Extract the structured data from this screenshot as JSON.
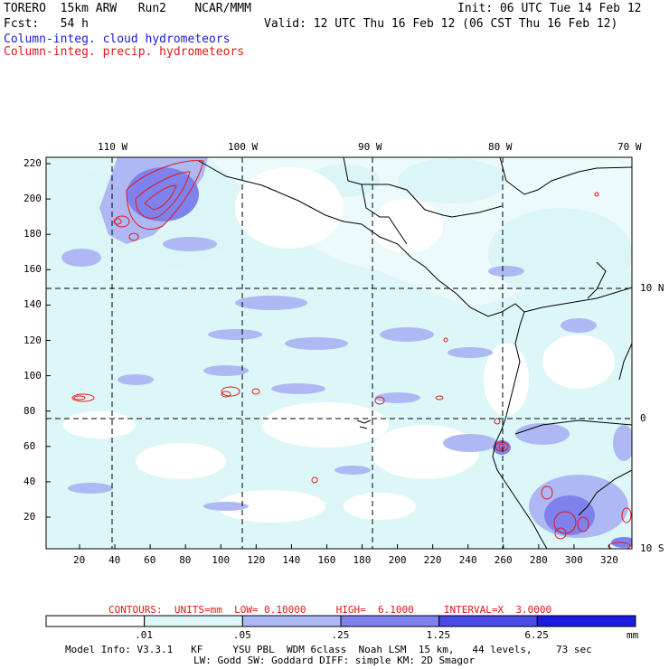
{
  "header": {
    "model": "TORERO  15km ARW   Run2    NCAR/MMM",
    "init": "Init: 06 UTC Tue 14 Feb 12",
    "fcst": "Fcst:   54 h",
    "valid": "Valid: 12 UTC Thu 16 Feb 12 (06 CST Thu 16 Feb 12)",
    "field_cloud": "Column-integ. cloud hydrometeors",
    "field_precip": "Column-integ. precip. hydrometeors"
  },
  "axes": {
    "top_lon_labels": [
      "110 W",
      "100 W",
      "90 W",
      "80 W",
      "70 W"
    ],
    "right_lat_labels": [
      "10 N",
      "0",
      "10 S"
    ],
    "left_y_ticks": [
      220,
      200,
      180,
      160,
      140,
      120,
      100,
      80,
      60,
      40,
      20
    ],
    "bottom_x_ticks": [
      20,
      40,
      60,
      80,
      100,
      120,
      140,
      160,
      180,
      200,
      220,
      240,
      260,
      280,
      300,
      320
    ]
  },
  "contours": {
    "label": "CONTOURS:  UNITS=mm  LOW= 0.10000     HIGH=  6.1000     INTERVAL=X  3.0000"
  },
  "colorbar": {
    "labels": [
      ".01",
      ".05",
      ".25",
      "1.25",
      "6.25"
    ],
    "unit": "mm",
    "colors": [
      "#ffffff",
      "#dcf6f8",
      "#aeb9f4",
      "#7f82ec",
      "#4a4ae6",
      "#1c1ce0"
    ]
  },
  "footer": {
    "line1": "Model Info: V3.3.1   KF     YSU PBL  WDM 6class  Noah LSM  15 km,   44 levels,    73 sec",
    "line2": "LW: Godd SW: Goddard DIFF: simple KM: 2D Smagor"
  },
  "colors": {
    "cloud_text": "#1a1adc",
    "precip_contour": "#e01818",
    "light_fill": "#dcf6f8",
    "mid_fill": "#aeb9f4",
    "dark_fill": "#7f82ec"
  }
}
